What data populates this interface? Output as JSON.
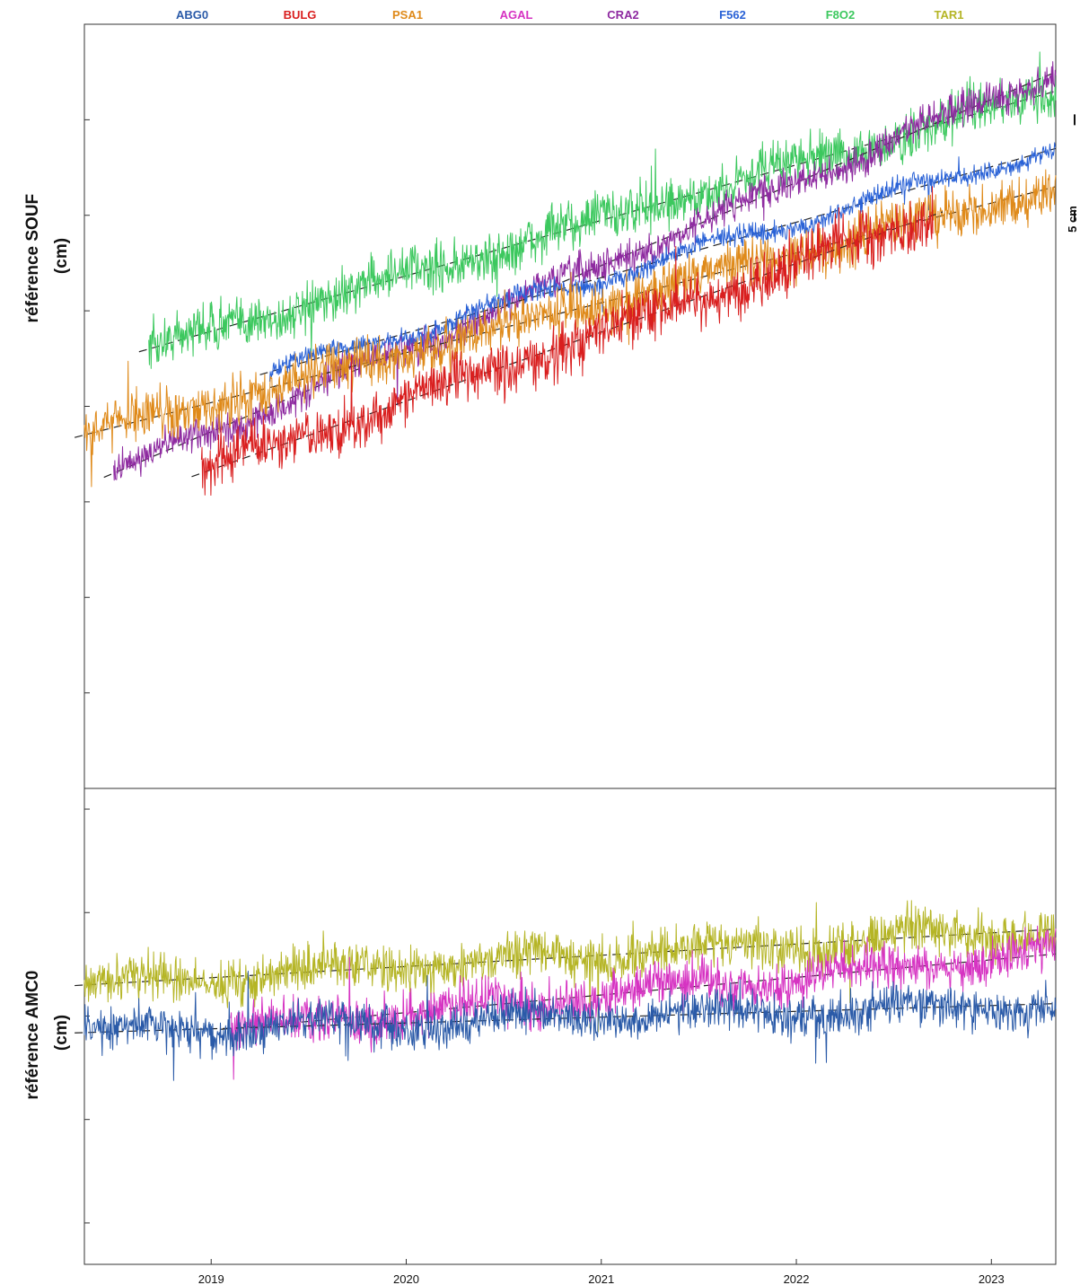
{
  "legend": [
    {
      "name": "ABG0",
      "color": "#2a5aa8"
    },
    {
      "name": "BULG",
      "color": "#d91e1e"
    },
    {
      "name": "PSA1",
      "color": "#df8a1a"
    },
    {
      "name": "AGAL",
      "color": "#d633c2"
    },
    {
      "name": "CRA2",
      "color": "#8e2aa0"
    },
    {
      "name": "F562",
      "color": "#2a62d6"
    },
    {
      "name": "F8O2",
      "color": "#3cc85e"
    },
    {
      "name": "TAR1",
      "color": "#b5b526"
    }
  ],
  "scale_bar": {
    "label": "5 cm"
  },
  "chart_data": [
    {
      "type": "line",
      "ylabel": "référence SOUF\n(cm)",
      "xlim": [
        2018.35,
        2023.33
      ],
      "x_ticks": [
        "2019",
        "2020",
        "2021",
        "2022",
        "2023"
      ],
      "scale_bar_cm": 5,
      "series": [
        {
          "name": "F8O2",
          "color": "#3cc85e",
          "start": 2018.68,
          "end": 2023.33,
          "y_start": 8.0,
          "y_end": 21.5,
          "noise": 0.9
        },
        {
          "name": "CRA2",
          "color": "#8e2aa0",
          "start": 2018.5,
          "end": 2023.33,
          "y_start": 1.5,
          "y_end": 22.5,
          "noise": 0.6
        },
        {
          "name": "F562",
          "color": "#2a62d6",
          "start": 2019.3,
          "end": 2023.33,
          "y_start": 6.8,
          "y_end": 18.5,
          "noise": 0.35
        },
        {
          "name": "PSA1",
          "color": "#df8a1a",
          "start": 2018.35,
          "end": 2023.33,
          "y_start": 3.5,
          "y_end": 16.5,
          "noise": 0.9
        },
        {
          "name": "BULG",
          "color": "#d91e1e",
          "start": 2018.95,
          "end": 2022.7,
          "y_start": 1.5,
          "y_end": 15.0,
          "noise": 1.0
        }
      ]
    },
    {
      "type": "line",
      "ylabel": "référence AMC0\n(cm)",
      "xlim": [
        2018.35,
        2023.33
      ],
      "x_ticks": [
        "2019",
        "2020",
        "2021",
        "2022",
        "2023"
      ],
      "series": [
        {
          "name": "TAR1",
          "color": "#b5b526",
          "start": 2018.35,
          "end": 2023.33,
          "y_start": 1.5,
          "y_end": 4.2,
          "noise": 0.8
        },
        {
          "name": "AGAL",
          "color": "#d633c2",
          "start": 2019.1,
          "end": 2023.33,
          "y_start": -0.6,
          "y_end": 3.0,
          "noise": 0.8
        },
        {
          "name": "ABG0",
          "color": "#2a5aa8",
          "start": 2018.35,
          "end": 2023.33,
          "y_start": -0.8,
          "y_end": 0.6,
          "noise": 0.7
        }
      ]
    }
  ]
}
